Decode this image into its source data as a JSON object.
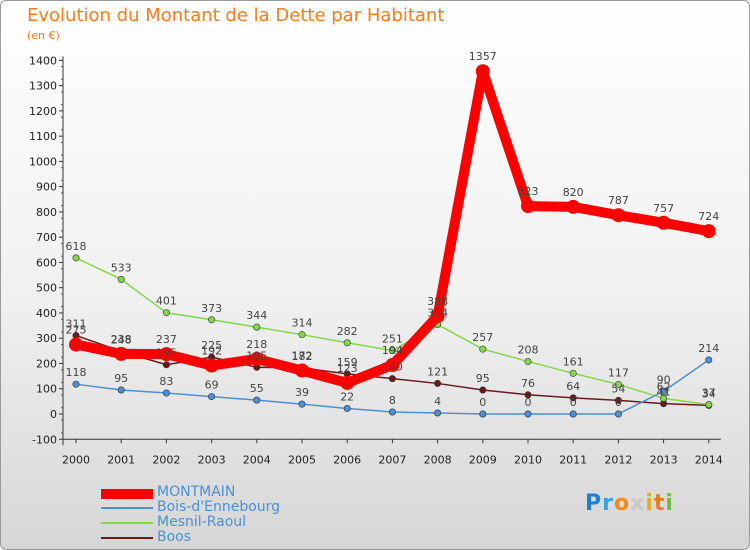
{
  "chart_data": {
    "type": "line",
    "title": "Evolution du Montant de la Dette par Habitant",
    "subtitle": "(en €)",
    "x": [
      "2000",
      "2001",
      "2002",
      "2003",
      "2004",
      "2005",
      "2006",
      "2007",
      "2008",
      "2009",
      "2010",
      "2011",
      "2012",
      "2013",
      "2014"
    ],
    "ylim": [
      -100,
      1400
    ],
    "yticks": [
      -100,
      0,
      100,
      200,
      300,
      400,
      500,
      600,
      700,
      800,
      900,
      1000,
      1100,
      1200,
      1300,
      1400
    ],
    "grid": false,
    "legend_position": "bottom-left",
    "series": [
      {
        "name": "MONTMAIN",
        "color": "#ff0000",
        "values": [
          275,
          238,
          237,
          192,
          218,
          172,
          123,
          194,
          388,
          1357,
          823,
          820,
          787,
          757,
          724
        ]
      },
      {
        "name": "Bois-d'Ennebourg",
        "color": "#4b8fd4",
        "values": [
          118,
          95,
          83,
          69,
          55,
          39,
          22,
          8,
          4,
          0,
          0,
          0,
          0,
          90,
          214
        ]
      },
      {
        "name": "Mesnil-Raoul",
        "color": "#80d84a",
        "values": [
          618,
          533,
          401,
          373,
          344,
          314,
          282,
          251,
          354,
          257,
          208,
          161,
          117,
          62,
          37
        ]
      },
      {
        "name": "Boos",
        "color": "#6b1a1a",
        "values": [
          311,
          248,
          195,
          225,
          185,
          182,
          159,
          140,
          121,
          95,
          76,
          64,
          54,
          41,
          34
        ]
      }
    ]
  },
  "logo": {
    "text": "Proxiti",
    "colors": [
      "#1f7fd0",
      "#3aa0e0",
      "#f08a20",
      "#c8c8c8",
      "#e0b020",
      "#f07a20",
      "#6bbf3a"
    ]
  }
}
